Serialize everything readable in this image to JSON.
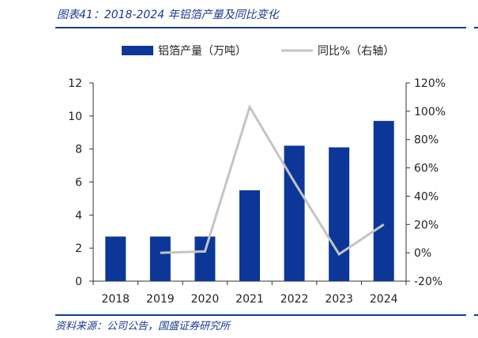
{
  "figure": {
    "title": "图表41：2018-2024 年铝箔产量及同比变化",
    "source": "资料来源：公司公告，国盛证券研究所"
  },
  "colors": {
    "title": "#1a3a8f",
    "bar": "#0c3799",
    "line": "#c4c4c4",
    "axis": "#333333"
  },
  "chart_data": {
    "type": "bar",
    "title": "",
    "categories": [
      "2018",
      "2019",
      "2020",
      "2021",
      "2022",
      "2023",
      "2024"
    ],
    "series": [
      {
        "name": "铝箔产量（万吨）",
        "type": "bar",
        "axis": "left",
        "values": [
          2.7,
          2.7,
          2.7,
          5.5,
          8.2,
          8.1,
          9.7
        ]
      },
      {
        "name": "同比%（右轴）",
        "type": "line",
        "axis": "right",
        "values": [
          null,
          0.0,
          1.0,
          103.0,
          50.0,
          -1.0,
          20.0
        ]
      }
    ],
    "y_left": {
      "min": 0,
      "max": 12,
      "ticks": [
        "0",
        "2",
        "4",
        "6",
        "8",
        "10",
        "12"
      ]
    },
    "y_right": {
      "min": -20,
      "max": 120,
      "ticks": [
        "-20%",
        "0%",
        "20%",
        "40%",
        "60%",
        "80%",
        "100%",
        "120%"
      ]
    },
    "grid": false,
    "legend_position": "top"
  }
}
